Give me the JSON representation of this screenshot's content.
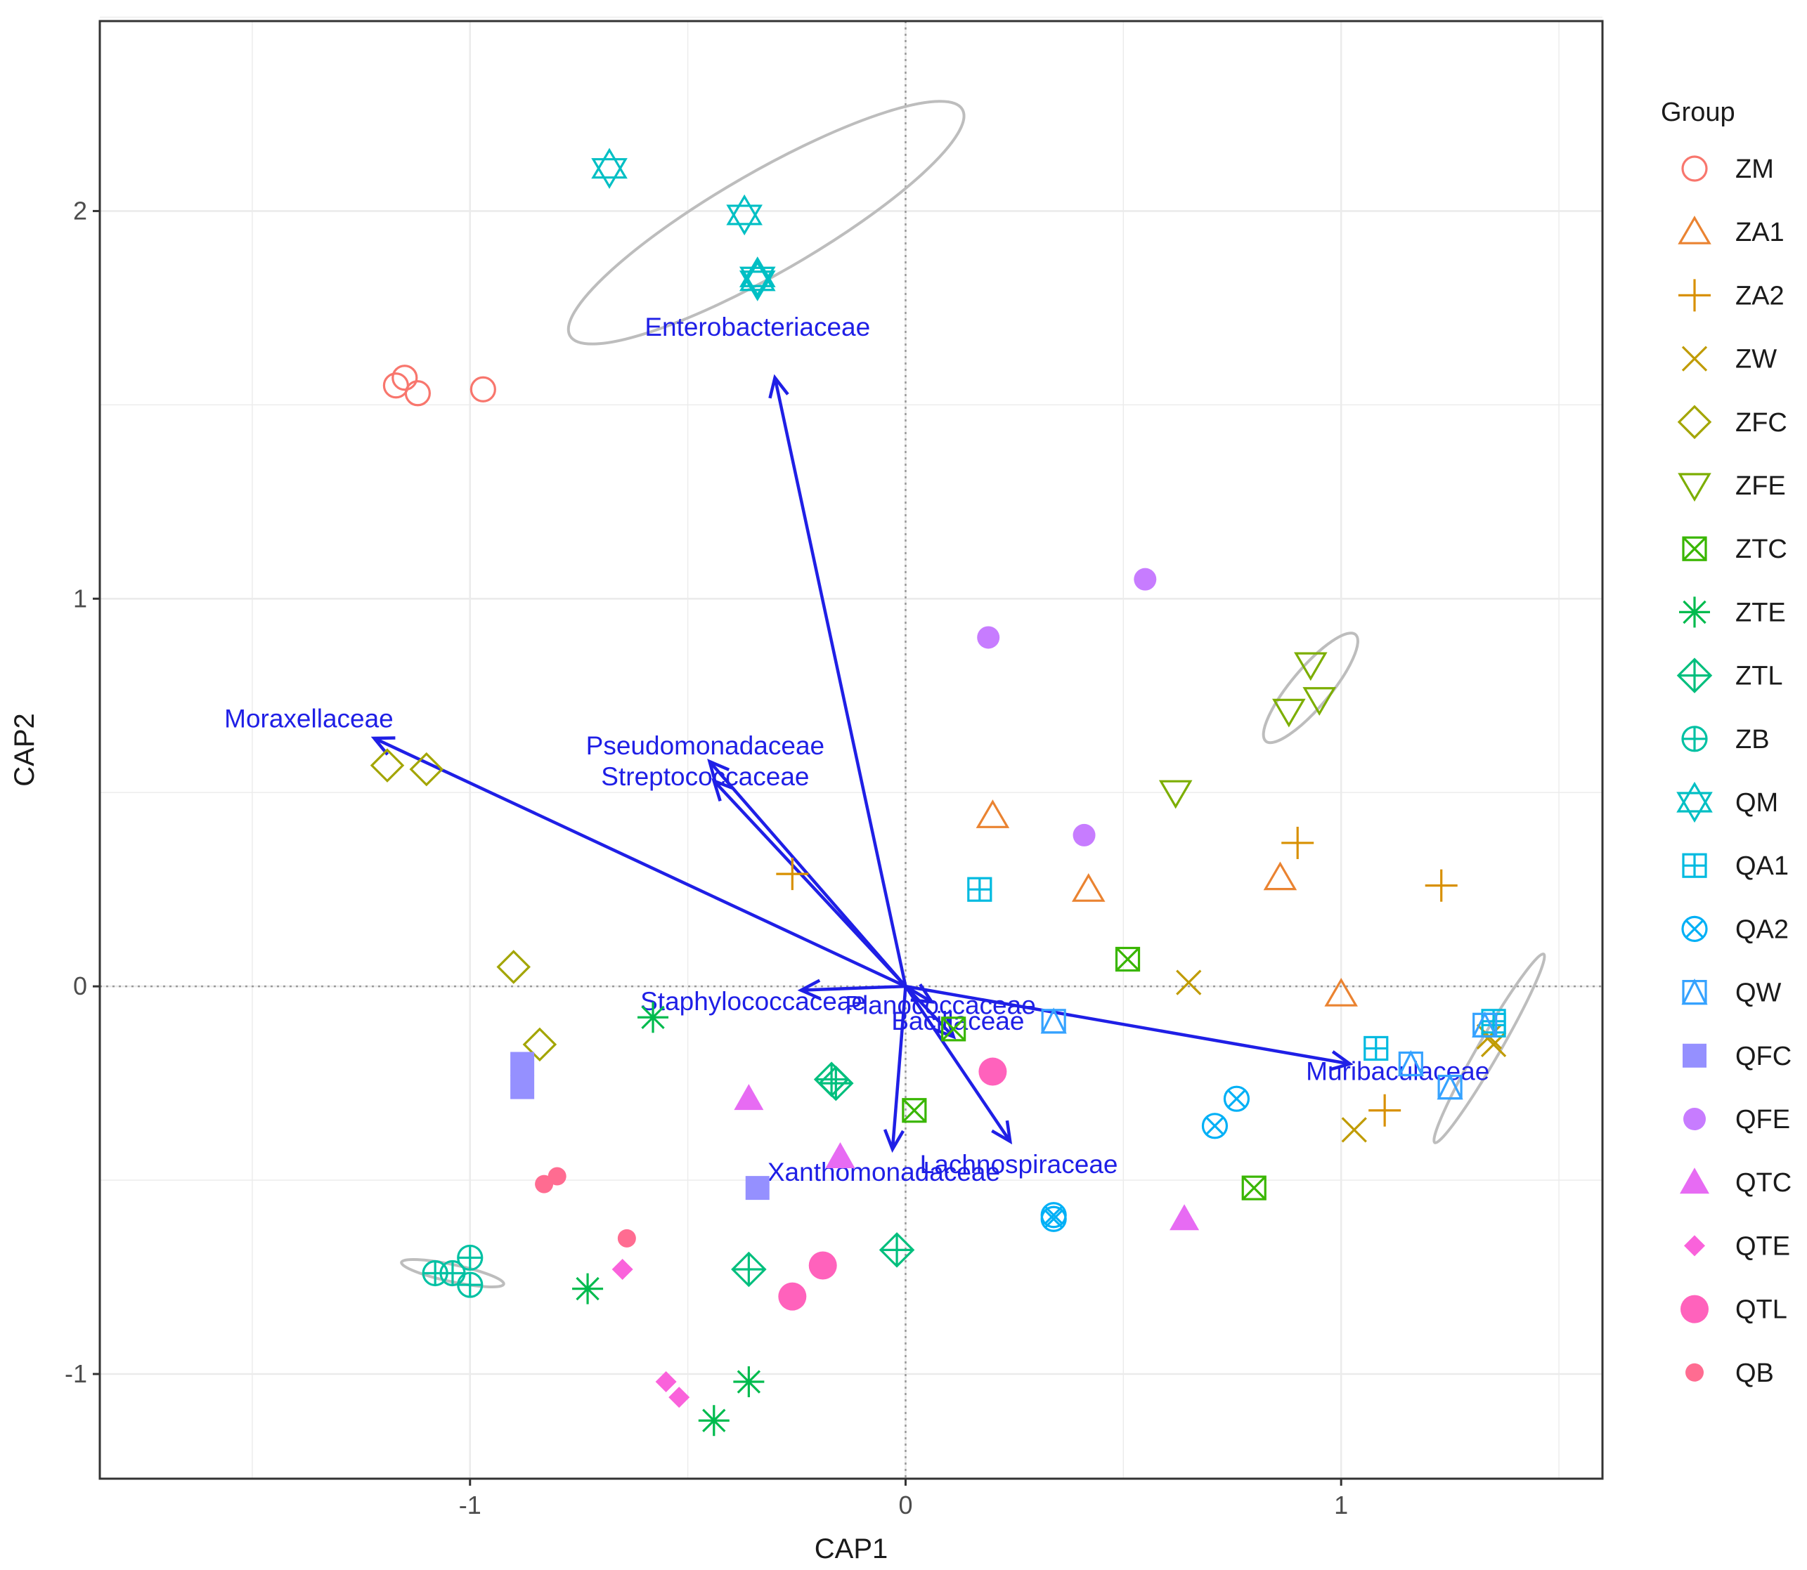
{
  "chart_data": {
    "type": "scatter",
    "title": "",
    "xlabel": "CAP1",
    "ylabel": "CAP2",
    "xlim": [
      -1.85,
      1.6
    ],
    "ylim": [
      -1.27,
      2.49
    ],
    "x_ticks": [
      -1,
      0,
      1
    ],
    "x_tick_labels": [
      "-1",
      "0",
      "1"
    ],
    "y_ticks": [
      -1,
      0,
      1,
      2
    ],
    "y_tick_labels": [
      "-1",
      "0",
      "1",
      "2"
    ],
    "grid": true,
    "zero_lines": true,
    "legend_title": "Group",
    "legend_position": "right",
    "colors": {
      "vectors": "#1f1fe6",
      "ellipse": "#bdbdbd",
      "grid": "#ebebeb",
      "zero_line": "#999999"
    },
    "groups": [
      {
        "name": "ZM",
        "color": "#F8766D",
        "shape": "circle-open",
        "points": [
          [
            -1.17,
            1.55
          ],
          [
            -1.15,
            1.57
          ],
          [
            -1.12,
            1.53
          ],
          [
            -0.97,
            1.54
          ]
        ]
      },
      {
        "name": "ZA1",
        "color": "#EA8331",
        "shape": "triangle-open",
        "points": [
          [
            0.2,
            0.44
          ],
          [
            0.42,
            0.25
          ],
          [
            0.86,
            0.28
          ],
          [
            1.0,
            -0.02
          ]
        ]
      },
      {
        "name": "ZA2",
        "color": "#D89000",
        "shape": "plus",
        "points": [
          [
            -0.26,
            0.29
          ],
          [
            0.9,
            0.37
          ],
          [
            1.23,
            0.26
          ],
          [
            1.1,
            -0.32
          ]
        ]
      },
      {
        "name": "ZW",
        "color": "#C09B00",
        "shape": "cross",
        "points": [
          [
            0.65,
            0.01
          ],
          [
            1.03,
            -0.37
          ],
          [
            1.35,
            -0.15
          ],
          [
            1.34,
            -0.13
          ]
        ]
      },
      {
        "name": "ZFC",
        "color": "#A3A500",
        "shape": "diamond-open",
        "points": [
          [
            -1.19,
            0.57
          ],
          [
            -1.1,
            0.56
          ],
          [
            -0.9,
            0.05
          ],
          [
            -0.84,
            -0.15
          ]
        ]
      },
      {
        "name": "ZFE",
        "color": "#7CAE00",
        "shape": "triangle-down-open",
        "points": [
          [
            0.93,
            0.83
          ],
          [
            0.95,
            0.74
          ],
          [
            0.88,
            0.71
          ],
          [
            0.62,
            0.5
          ]
        ]
      },
      {
        "name": "ZTC",
        "color": "#39B600",
        "shape": "square-cross",
        "points": [
          [
            0.51,
            0.07
          ],
          [
            0.11,
            -0.11
          ],
          [
            0.02,
            -0.32
          ],
          [
            0.8,
            -0.52
          ]
        ]
      },
      {
        "name": "ZTE",
        "color": "#00BB4E",
        "shape": "asterisk",
        "points": [
          [
            -0.58,
            -0.08
          ],
          [
            -0.73,
            -0.78
          ],
          [
            -0.36,
            -1.02
          ],
          [
            -0.44,
            -1.12
          ]
        ]
      },
      {
        "name": "ZTL",
        "color": "#00BF7D",
        "shape": "diamond-plus",
        "points": [
          [
            -0.17,
            -0.24
          ],
          [
            -0.16,
            -0.25
          ],
          [
            -0.36,
            -0.73
          ],
          [
            -0.02,
            -0.68
          ]
        ]
      },
      {
        "name": "ZB",
        "color": "#00C1A3",
        "shape": "circle-plus",
        "points": [
          [
            -1.08,
            -0.74
          ],
          [
            -1.04,
            -0.74
          ],
          [
            -1.0,
            -0.7
          ],
          [
            -1.0,
            -0.77
          ]
        ]
      },
      {
        "name": "QM",
        "color": "#00BFC4",
        "shape": "star-david",
        "points": [
          [
            -0.68,
            2.11
          ],
          [
            -0.37,
            1.99
          ],
          [
            -0.34,
            1.82
          ],
          [
            -0.34,
            1.83
          ]
        ]
      },
      {
        "name": "QA1",
        "color": "#00BAE0",
        "shape": "square-plus",
        "points": [
          [
            0.17,
            0.25
          ],
          [
            1.08,
            -0.16
          ],
          [
            1.35,
            -0.09
          ],
          [
            1.35,
            -0.1
          ]
        ]
      },
      {
        "name": "QA2",
        "color": "#00B0F6",
        "shape": "circle-cross",
        "points": [
          [
            0.76,
            -0.29
          ],
          [
            0.71,
            -0.36
          ],
          [
            0.34,
            -0.59
          ],
          [
            0.34,
            -0.6
          ]
        ]
      },
      {
        "name": "QW",
        "color": "#35A2FF",
        "shape": "square-triangle",
        "points": [
          [
            0.34,
            -0.09
          ],
          [
            1.16,
            -0.2
          ],
          [
            1.25,
            -0.26
          ],
          [
            1.33,
            -0.1
          ]
        ]
      },
      {
        "name": "QFC",
        "color": "#9590FF",
        "shape": "square",
        "points": [
          [
            -0.88,
            -0.2
          ],
          [
            -0.88,
            -0.26
          ],
          [
            -0.34,
            -0.52
          ]
        ]
      },
      {
        "name": "QFE",
        "color": "#C77CFF",
        "shape": "circle",
        "points": [
          [
            0.55,
            1.05
          ],
          [
            0.19,
            0.9
          ],
          [
            0.41,
            0.39
          ]
        ]
      },
      {
        "name": "QTC",
        "color": "#E76BF3",
        "shape": "triangle",
        "points": [
          [
            -0.36,
            -0.29
          ],
          [
            -0.15,
            -0.44
          ],
          [
            0.64,
            -0.6
          ]
        ]
      },
      {
        "name": "QTE",
        "color": "#FA62DB",
        "shape": "diamond",
        "points": [
          [
            -0.65,
            -0.73
          ],
          [
            -0.55,
            -1.02
          ],
          [
            -0.52,
            -1.06
          ]
        ]
      },
      {
        "name": "QTL",
        "color": "#FF62BC",
        "shape": "circle-big",
        "points": [
          [
            0.2,
            -0.22
          ],
          [
            -0.19,
            -0.72
          ],
          [
            -0.26,
            -0.8
          ]
        ]
      },
      {
        "name": "QB",
        "color": "#FF6C91",
        "shape": "circle-small",
        "points": [
          [
            -0.8,
            -0.49
          ],
          [
            -0.83,
            -0.51
          ],
          [
            -0.64,
            -0.65
          ]
        ]
      }
    ],
    "vectors": [
      {
        "name": "Enterobacteriaceae",
        "x": -0.3,
        "y": 1.57,
        "label_x": -0.34,
        "label_y": 1.7
      },
      {
        "name": "Moraxellaceae",
        "x": -1.22,
        "y": 0.64,
        "label_x": -1.37,
        "label_y": 0.69
      },
      {
        "name": "Pseudomonadaceae",
        "x": -0.45,
        "y": 0.58,
        "label_x": -0.46,
        "label_y": 0.62
      },
      {
        "name": "Streptococcaceae",
        "x": -0.44,
        "y": 0.53,
        "label_x": -0.46,
        "label_y": 0.54
      },
      {
        "name": "Staphylococcaceae",
        "x": -0.24,
        "y": -0.01,
        "label_x": -0.35,
        "label_y": -0.04
      },
      {
        "name": "Planococcaceae",
        "x": 0.06,
        "y": -0.04,
        "label_x": 0.08,
        "label_y": -0.05
      },
      {
        "name": "Bacillaceae",
        "x": 0.11,
        "y": -0.13,
        "label_x": 0.12,
        "label_y": -0.09
      },
      {
        "name": "Xanthomonadaceae",
        "x": -0.03,
        "y": -0.42,
        "label_x": -0.05,
        "label_y": -0.48
      },
      {
        "name": "Lachnospiraceae",
        "x": 0.24,
        "y": -0.4,
        "label_x": 0.26,
        "label_y": -0.46
      },
      {
        "name": "Muribaculaceae",
        "x": 1.02,
        "y": -0.2,
        "label_x": 1.13,
        "label_y": -0.22
      }
    ],
    "ellipses": [
      {
        "group": "QM",
        "cx": -0.32,
        "cy": 1.97,
        "rx": 0.52,
        "ry": 0.13,
        "angle": -30
      },
      {
        "group": "ZFE",
        "cx": 0.93,
        "cy": 0.77,
        "rx": 0.16,
        "ry": 0.05,
        "angle": -50
      },
      {
        "group": "ZB",
        "cx": -1.04,
        "cy": -0.74,
        "rx": 0.12,
        "ry": 0.022,
        "angle": 12
      },
      {
        "group": "QW",
        "cx": 1.34,
        "cy": -0.16,
        "rx": 0.25,
        "ry": 0.028,
        "angle": -60
      }
    ]
  }
}
